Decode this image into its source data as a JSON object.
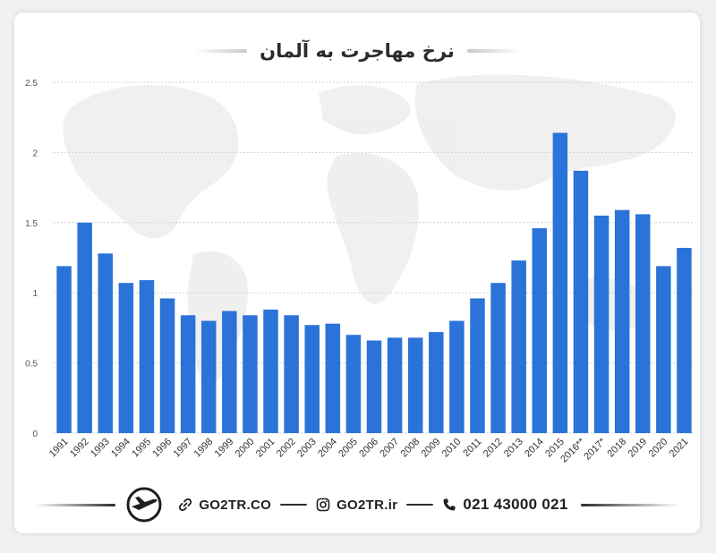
{
  "title": "نرخ مهاجرت به آلمان",
  "footer": {
    "website": "GO2TR.CO",
    "instagram": "GO2TR.ir",
    "phone": "021 43000 021"
  },
  "colors": {
    "bar": "#2b73d9",
    "grid": "#cfcfcf",
    "tick": "#555555"
  },
  "icons": [
    "airplane-logo-icon",
    "link-icon",
    "instagram-icon",
    "phone-icon"
  ],
  "chart_data": {
    "type": "bar",
    "title": "",
    "xlabel": "",
    "ylabel": "",
    "ylim": [
      0,
      2.5
    ],
    "yticks": [
      "0",
      "0.5",
      "1",
      "1.5",
      "2",
      "2.5"
    ],
    "grid": true,
    "categories": [
      "1991",
      "1992",
      "1993",
      "1994",
      "1995",
      "1996",
      "1997",
      "1998",
      "1999",
      "2000",
      "2001",
      "2002",
      "2003",
      "2004",
      "2005",
      "2006",
      "2007",
      "2008",
      "2009",
      "2010",
      "2011",
      "2012",
      "2013",
      "2014",
      "2015",
      "2016**",
      "2017*",
      "2018",
      "2019",
      "2020",
      "2021"
    ],
    "values": [
      1.19,
      1.5,
      1.28,
      1.07,
      1.09,
      0.96,
      0.84,
      0.8,
      0.87,
      0.84,
      0.88,
      0.84,
      0.77,
      0.78,
      0.7,
      0.66,
      0.68,
      0.68,
      0.72,
      0.8,
      0.96,
      1.07,
      1.23,
      1.46,
      2.14,
      1.87,
      1.55,
      1.59,
      1.56,
      1.19,
      1.32
    ]
  }
}
